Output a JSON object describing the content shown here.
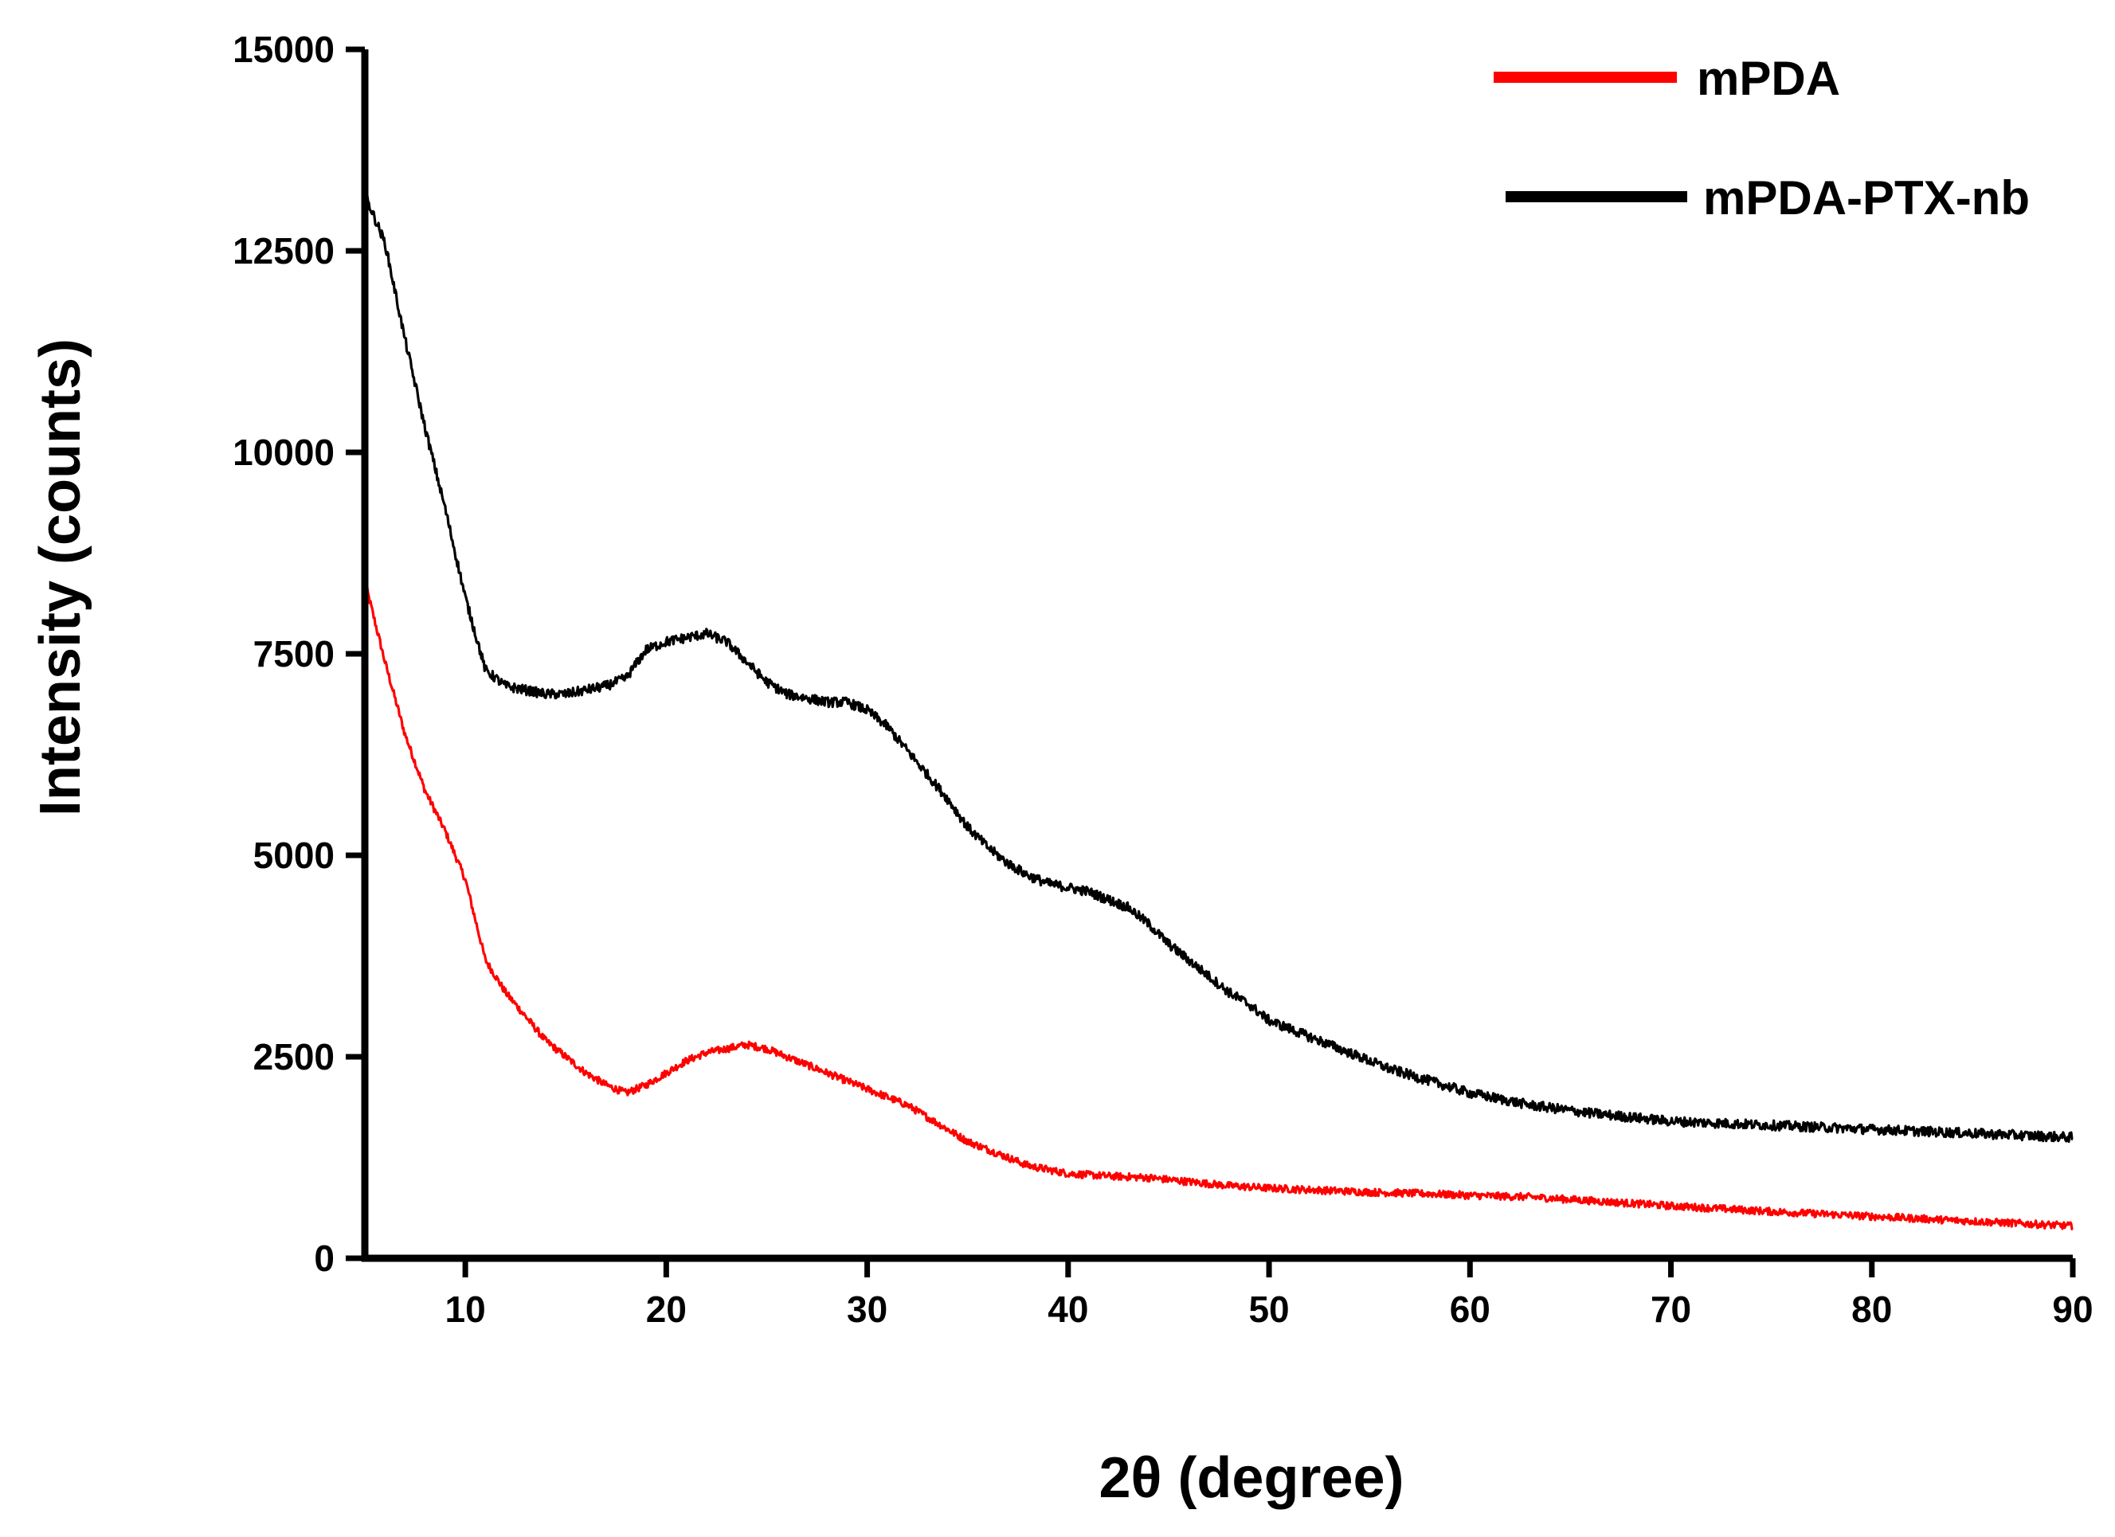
{
  "chart_data": {
    "type": "line",
    "title": "",
    "xlabel": "2θ (degree)",
    "ylabel": "Intensity (counts)",
    "xlim": [
      5,
      90
    ],
    "ylim": [
      0,
      15000
    ],
    "xticks": [
      10,
      20,
      30,
      40,
      50,
      60,
      70,
      80,
      90
    ],
    "yticks": [
      0,
      2500,
      5000,
      7500,
      10000,
      12500,
      15000
    ],
    "xtick_labels": [
      "10",
      "20",
      "30",
      "40",
      "50",
      "60",
      "70",
      "80",
      "90"
    ],
    "ytick_labels": [
      "0",
      "2500",
      "5000",
      "7500",
      "10000",
      "12500",
      "15000"
    ],
    "grid": false,
    "legend_position": "top-right",
    "series": [
      {
        "name": "mPDA",
        "color": "#ff0000",
        "x": [
          5,
          6,
          7,
          8,
          9,
          10,
          11,
          12,
          13,
          14,
          15,
          16,
          17,
          18,
          19,
          20,
          21,
          22,
          23,
          24,
          25,
          26,
          27,
          28,
          29,
          30,
          31,
          32,
          33,
          34,
          35,
          36,
          37,
          38,
          39,
          40,
          42,
          44,
          46,
          48,
          50,
          52,
          55,
          58,
          60,
          63,
          65,
          70,
          75,
          80,
          85,
          90
        ],
        "y": [
          8400,
          7400,
          6500,
          5800,
          5300,
          4700,
          3700,
          3300,
          3000,
          2700,
          2500,
          2300,
          2150,
          2050,
          2150,
          2300,
          2450,
          2550,
          2600,
          2650,
          2600,
          2500,
          2400,
          2300,
          2200,
          2100,
          2000,
          1900,
          1750,
          1600,
          1450,
          1350,
          1250,
          1150,
          1100,
          1050,
          1020,
          1000,
          950,
          900,
          870,
          850,
          820,
          800,
          780,
          760,
          730,
          650,
          580,
          520,
          460,
          400
        ]
      },
      {
        "name": "mPDA-PTX-nb",
        "color": "#000000",
        "x": [
          5,
          6,
          7,
          8,
          9,
          10,
          11,
          12,
          13,
          14,
          15,
          16,
          17,
          18,
          19,
          20,
          21,
          22,
          23,
          24,
          25,
          26,
          27,
          28,
          29,
          30,
          31,
          32,
          33,
          34,
          35,
          36,
          37,
          38,
          39,
          40,
          41,
          42,
          43,
          44,
          45,
          46,
          47,
          48,
          49,
          50,
          52,
          54,
          56,
          58,
          60,
          63,
          66,
          70,
          75,
          80,
          85,
          90
        ],
        "y": [
          13200,
          12600,
          11400,
          10300,
          9300,
          8200,
          7300,
          7100,
          7050,
          7000,
          7000,
          7050,
          7100,
          7200,
          7550,
          7650,
          7700,
          7750,
          7650,
          7400,
          7150,
          7000,
          6950,
          6900,
          6900,
          6800,
          6600,
          6300,
          6000,
          5700,
          5350,
          5100,
          4900,
          4750,
          4650,
          4600,
          4550,
          4450,
          4350,
          4150,
          3900,
          3700,
          3500,
          3300,
          3150,
          2950,
          2750,
          2550,
          2350,
          2200,
          2050,
          1900,
          1800,
          1700,
          1650,
          1600,
          1550,
          1500
        ]
      }
    ]
  }
}
